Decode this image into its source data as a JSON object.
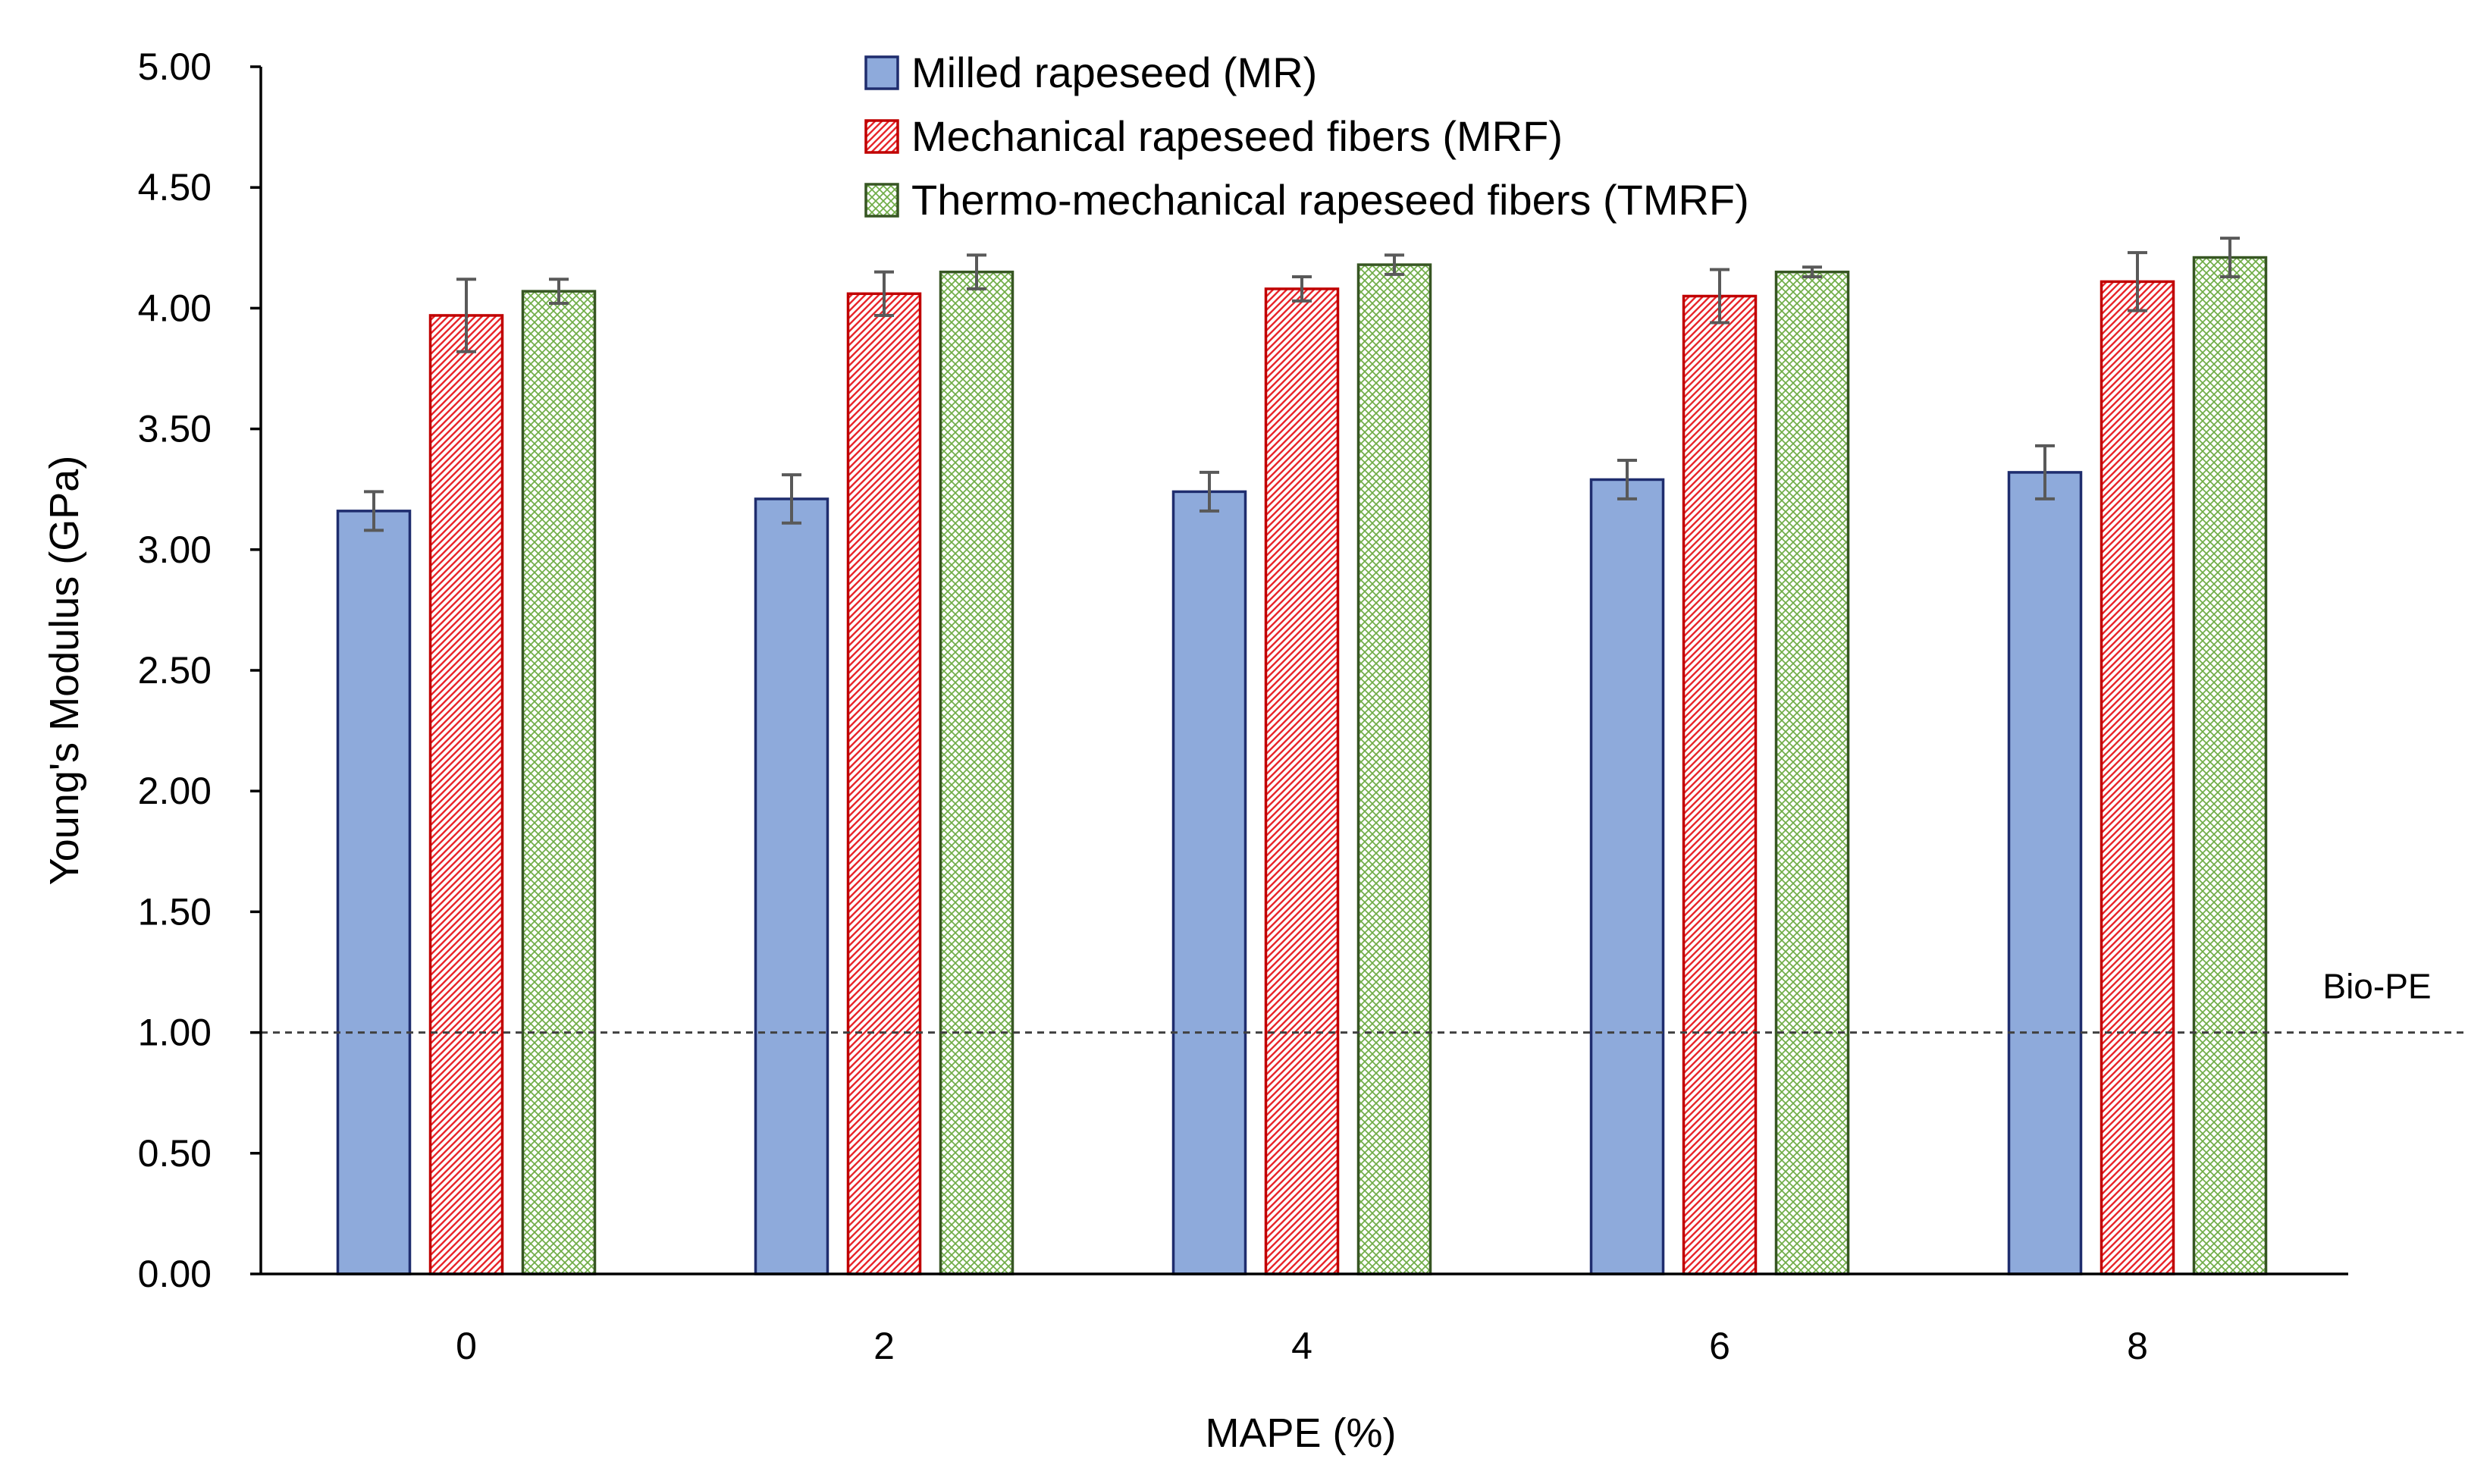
{
  "chart_data": {
    "type": "bar",
    "title": "",
    "xlabel": "MAPE (%)",
    "ylabel": "Young's Modulus (GPa)",
    "categories": [
      "0",
      "2",
      "4",
      "6",
      "8"
    ],
    "ylim": [
      0,
      5
    ],
    "y_ticks": [
      "0.00",
      "0.50",
      "1.00",
      "1.50",
      "2.00",
      "2.50",
      "3.00",
      "3.50",
      "4.00",
      "4.50",
      "5.00"
    ],
    "grid": false,
    "legend_position": "top-center",
    "series": [
      {
        "name": "Milled rapeseed (MR)",
        "pattern": "solid",
        "fill": "#8eaadb",
        "stroke": "#1f2d6e",
        "values": [
          3.16,
          3.21,
          3.24,
          3.29,
          3.32
        ],
        "errors": [
          0.08,
          0.1,
          0.08,
          0.08,
          0.11
        ]
      },
      {
        "name": "Mechanical rapeseed fibers (MRF)",
        "pattern": "hatch",
        "fill": "#e8262b",
        "stroke": "#c00000",
        "values": [
          3.97,
          4.06,
          4.08,
          4.05,
          4.11
        ],
        "errors": [
          0.15,
          0.09,
          0.05,
          0.11,
          0.12
        ]
      },
      {
        "name": "Thermo-mechanical rapeseed fibers (TMRF)",
        "pattern": "crosshatch",
        "fill": "#70ad47",
        "stroke": "#375623",
        "values": [
          4.07,
          4.15,
          4.18,
          4.15,
          4.21
        ],
        "errors": [
          0.05,
          0.07,
          0.04,
          0.02,
          0.08
        ]
      }
    ],
    "reference_line": {
      "label": "Bio-PE",
      "value": 1.0,
      "style": "dashed"
    },
    "error_bar_color": "#595959",
    "axis_color": "#000000"
  }
}
